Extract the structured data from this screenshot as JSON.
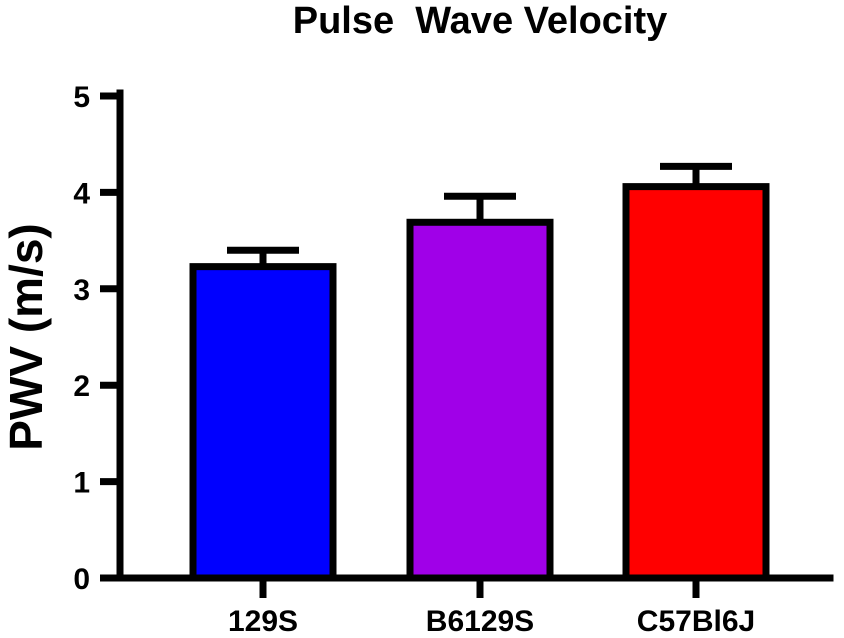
{
  "chart_data": {
    "type": "bar",
    "title": "Pulse  Wave Velocity",
    "xlabel": "",
    "ylabel": "PWV (m/s)",
    "ylim": [
      0,
      5
    ],
    "yticks": [
      0,
      1,
      2,
      3,
      4,
      5
    ],
    "ytick_labels": [
      "0",
      "1",
      "2",
      "3",
      "4",
      "5"
    ],
    "categories": [
      "129S",
      "B6129S",
      "C57Bl6J"
    ],
    "values": [
      3.23,
      3.69,
      4.06
    ],
    "errors": [
      0.17,
      0.27,
      0.21
    ],
    "colors": [
      "#0000ff",
      "#a000e8",
      "#ff0000"
    ],
    "edge_color": "#000000",
    "grid": false,
    "legend": "none"
  }
}
